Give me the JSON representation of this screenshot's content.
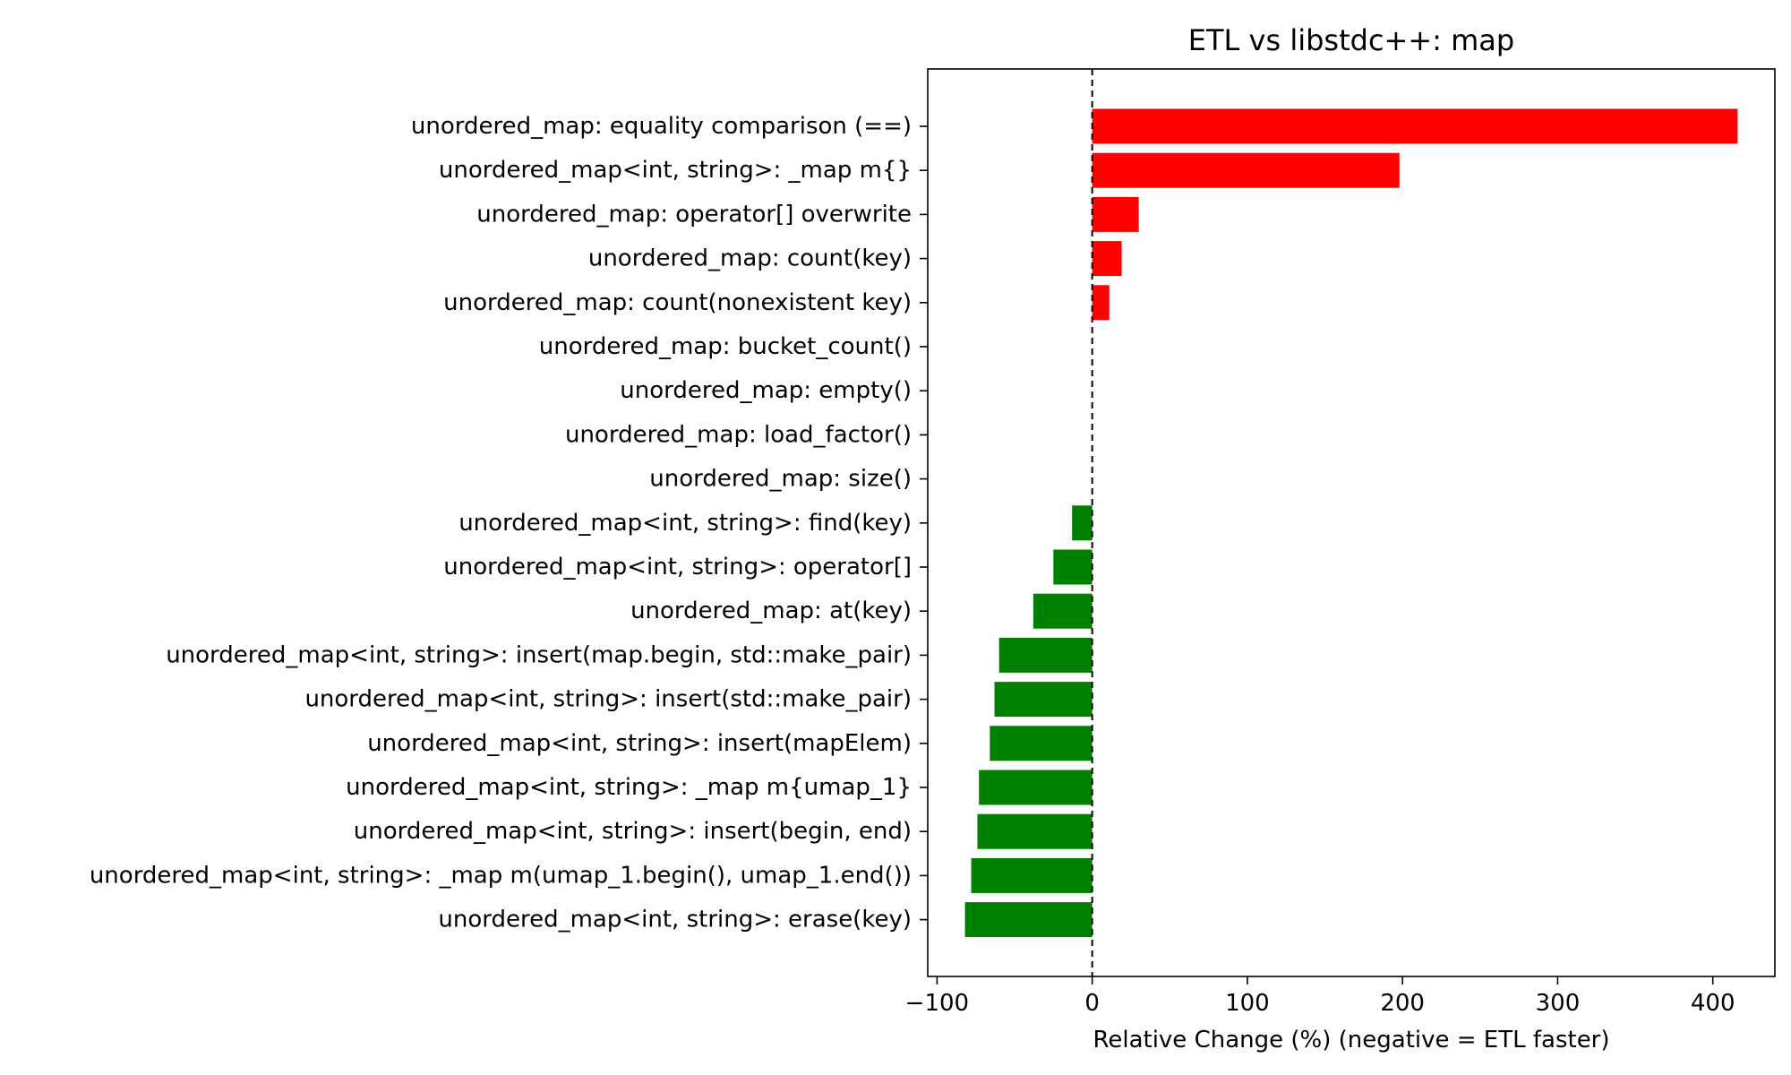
{
  "chart_data": {
    "type": "bar",
    "orientation": "horizontal",
    "title": "ETL vs libstdc++: map",
    "xlabel": "Relative Change (%)  (negative = ETL faster)",
    "ylabel": "",
    "xlim": [
      -106,
      440
    ],
    "xticks": [
      -100,
      0,
      100,
      200,
      300,
      400
    ],
    "xtick_labels": [
      "−100",
      "0",
      "100",
      "200",
      "300",
      "400"
    ],
    "grid": false,
    "reference_line": {
      "x": 0,
      "style": "dashed"
    },
    "colors": {
      "positive": "#ff0000",
      "negative": "#008000",
      "axis": "#000000"
    },
    "categories": [
      "unordered_map: equality comparison (==)",
      "unordered_map<int, string>: _map m{}",
      "unordered_map: operator[] overwrite",
      "unordered_map: count(key)",
      "unordered_map: count(nonexistent key)",
      "unordered_map: bucket_count()",
      "unordered_map: empty()",
      "unordered_map: load_factor()",
      "unordered_map: size()",
      "unordered_map<int, string>: find(key)",
      "unordered_map<int, string>: operator[]",
      "unordered_map: at(key)",
      "unordered_map<int, string>: insert(map.begin, std::make_pair)",
      "unordered_map<int, string>: insert(std::make_pair)",
      "unordered_map<int, string>: insert(mapElem)",
      "unordered_map<int, string>: _map m{umap_1}",
      "unordered_map<int, string>: insert(begin, end)",
      "unordered_map<int, string>: _map m(umap_1.begin(), umap_1.end())",
      "unordered_map<int, string>: erase(key)"
    ],
    "values": [
      416,
      198,
      30,
      19,
      11,
      0,
      0,
      0,
      0,
      -13,
      -25,
      -38,
      -60,
      -63,
      -66,
      -73,
      -74,
      -78,
      -82
    ]
  }
}
